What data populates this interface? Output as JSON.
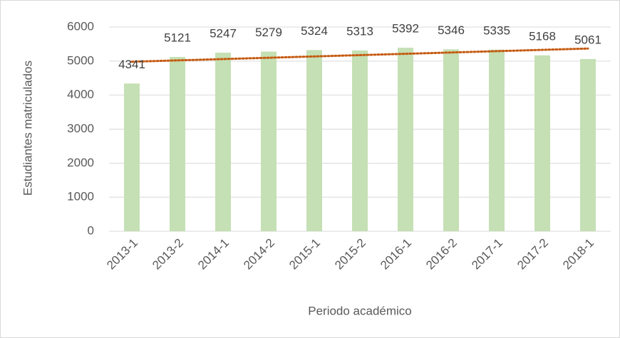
{
  "chart_data": {
    "type": "bar",
    "x_label": "Periodo académico",
    "y_label": "Estudiantes matriculados",
    "categories": [
      "2013-1",
      "2013-2",
      "2014-1",
      "2014-2",
      "2015-1",
      "2015-2",
      "2016-1",
      "2016-2",
      "2017-1",
      "2017-2",
      "2018-1"
    ],
    "values": [
      4341,
      5121,
      5247,
      5279,
      5324,
      5313,
      5392,
      5346,
      5335,
      5168,
      5061
    ],
    "color": "#c5e0b4",
    "ylim": [
      0,
      6000
    ],
    "yticks": [
      0,
      1000,
      2000,
      3000,
      4000,
      5000,
      6000
    ],
    "grid": true,
    "trendline": "linear",
    "trendline_color": "#c55a11"
  }
}
